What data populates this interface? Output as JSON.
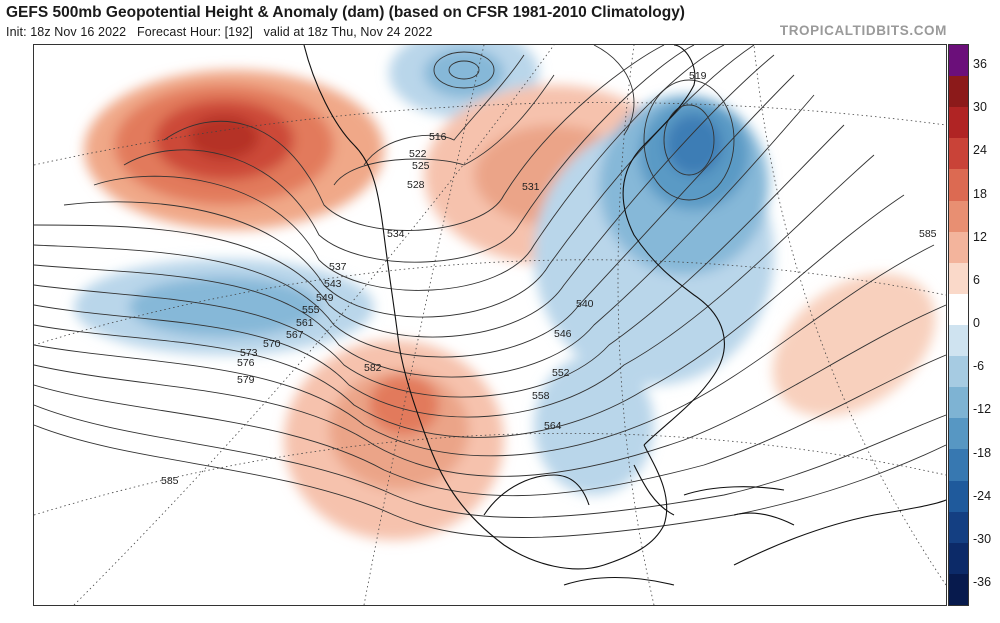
{
  "header": {
    "title": "GEFS 500mb Geopotential Height & Anomaly (dam) (based on CFSR 1981-2010 Climatology)",
    "init": "Init: 18z Nov 16 2022",
    "forecast_hour": "Forecast Hour: [192]",
    "valid": "valid at 18z Thu, Nov 24 2022",
    "credit": "TROPICALTIDBITS.COM"
  },
  "colorbar": {
    "labels": [
      "36",
      "30",
      "24",
      "18",
      "12",
      "6",
      "0",
      "-6",
      "-12",
      "-18",
      "-24",
      "-30",
      "-36"
    ],
    "colors": [
      "#6b0f7a",
      "#8c1a1a",
      "#b02424",
      "#c94338",
      "#dc6a52",
      "#e88f72",
      "#f3b49c",
      "#fad9c9",
      "#ffffff",
      "#cfe3f0",
      "#a6cbe2",
      "#7eb3d3",
      "#5797c3",
      "#3778b1",
      "#1f5a9c",
      "#143f82",
      "#0c2a68",
      "#071a4d"
    ]
  },
  "contour_labels": [
    "516",
    "522",
    "525",
    "528",
    "531",
    "534",
    "537",
    "540",
    "543",
    "546",
    "549",
    "552",
    "555",
    "558",
    "561",
    "564",
    "567",
    "570",
    "573",
    "576",
    "579",
    "582",
    "585",
    "519",
    "585"
  ],
  "map": {
    "warm_color": "#e07050",
    "cool_color": "#3a7fb8",
    "land_outline": "#111111"
  }
}
